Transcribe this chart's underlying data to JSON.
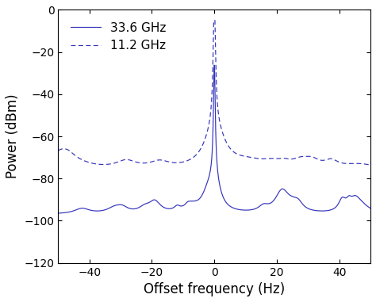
{
  "title": "",
  "xlabel": "Offset frequency (Hz)",
  "ylabel": "Power (dBm)",
  "xlim": [
    -50,
    50
  ],
  "ylim": [
    -120,
    0
  ],
  "yticks": [
    0,
    -20,
    -40,
    -60,
    -80,
    -100,
    -120
  ],
  "xticks": [
    -40,
    -20,
    0,
    20,
    40
  ],
  "line_color": "#3333bb",
  "legend_33": "33.6 GHz",
  "legend_11": "11.2 GHz",
  "figsize": [
    4.74,
    3.81
  ],
  "dpi": 100
}
